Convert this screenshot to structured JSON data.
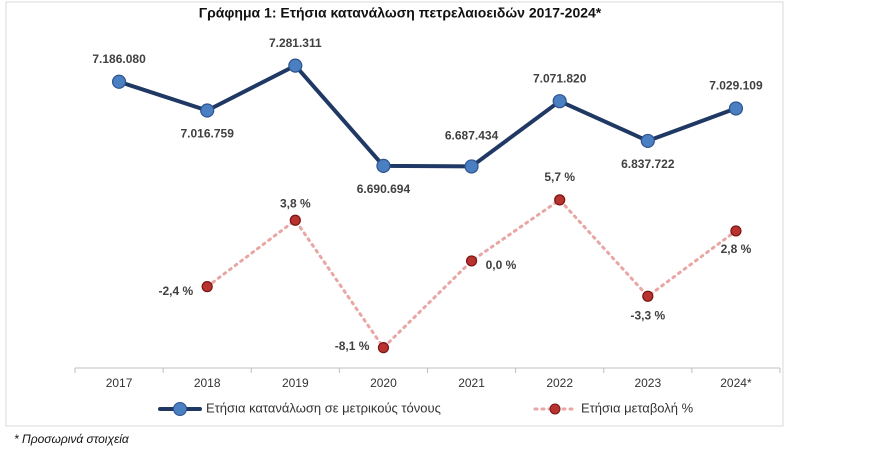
{
  "chart_data": {
    "type": "line",
    "title": "Γράφημα 1: Ετήσια κατανάλωση πετρελαιοειδών 2017-2024*",
    "categories": [
      "2017",
      "2018",
      "2019",
      "2020",
      "2021",
      "2022",
      "2023",
      "2024*"
    ],
    "series": [
      {
        "name": "Ετήσια κατανάλωση σε μετρικούς τόνους",
        "color": "#1f3864",
        "marker_color": "#4a7fc1",
        "values": [
          7186080,
          7016759,
          7281311,
          6690694,
          6687434,
          7071820,
          6837722,
          7029109
        ],
        "value_labels": [
          "7.186.080",
          "7.016.759",
          "7.281.311",
          "6.690.694",
          "6.687.434",
          "7.071.820",
          "6.837.722",
          "7.029.109"
        ]
      },
      {
        "name": "Ετήσια μεταβολή %",
        "color": "#e8a6a4",
        "marker_color": "#b8322f",
        "axis": "y2",
        "dashed": true,
        "values": [
          null,
          -2.4,
          3.8,
          -8.1,
          0.0,
          5.7,
          -3.3,
          2.8
        ],
        "value_labels": [
          null,
          "-2,4 %",
          "3,8 %",
          "-8,1 %",
          "0,0 %",
          "5,7 %",
          "-3,3 %",
          "2,8 %"
        ]
      }
    ],
    "ylim": [
      5500000,
      7550000
    ],
    "y2lim": [
      -10,
      22.5
    ],
    "legend": "bottom",
    "footnote": "* Προσωρινά στοιχεία"
  }
}
